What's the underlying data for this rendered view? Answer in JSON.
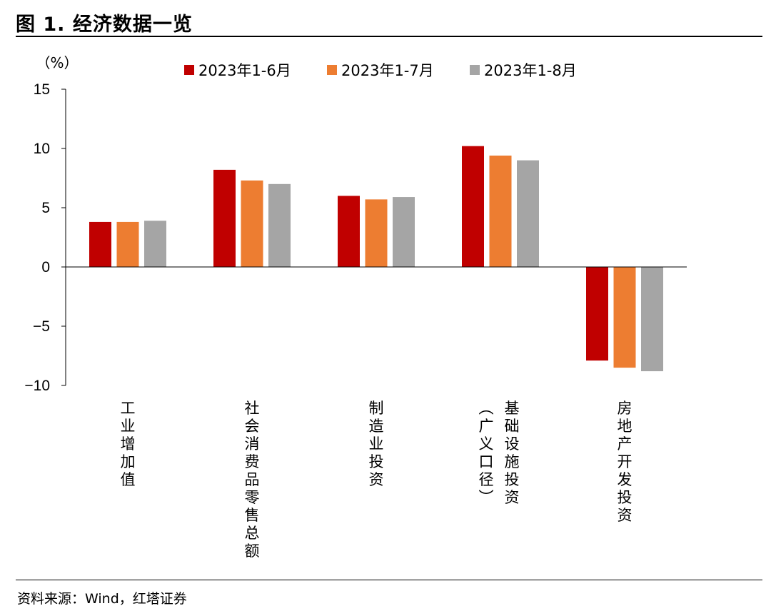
{
  "figure": {
    "title": "图 1. 经济数据一览",
    "source": "资料来源：Wind，红塔证券"
  },
  "chart_data": {
    "type": "bar",
    "unit_label": "（%）",
    "categories": [
      "工业增加值",
      "社会消费品零售总额",
      "制造业投资",
      "基础设施投资（广义口径）",
      "房地产开发投资"
    ],
    "series": [
      {
        "name": "2023年1-6月",
        "color": "#c00000",
        "values": [
          3.8,
          8.2,
          6.0,
          10.2,
          -7.9
        ]
      },
      {
        "name": "2023年1-7月",
        "color": "#ed7d31",
        "values": [
          3.8,
          7.3,
          5.7,
          9.4,
          -8.5
        ]
      },
      {
        "name": "2023年1-8月",
        "color": "#a5a5a5",
        "values": [
          3.9,
          7.0,
          5.9,
          9.0,
          -8.8
        ]
      }
    ],
    "ylim": [
      -10,
      15
    ],
    "yticks": [
      "15",
      "10",
      "5",
      "0",
      "−5",
      "−10"
    ],
    "ytick_values": [
      15,
      10,
      5,
      0,
      -5,
      -10
    ],
    "legend_position": "top",
    "grid": false
  }
}
